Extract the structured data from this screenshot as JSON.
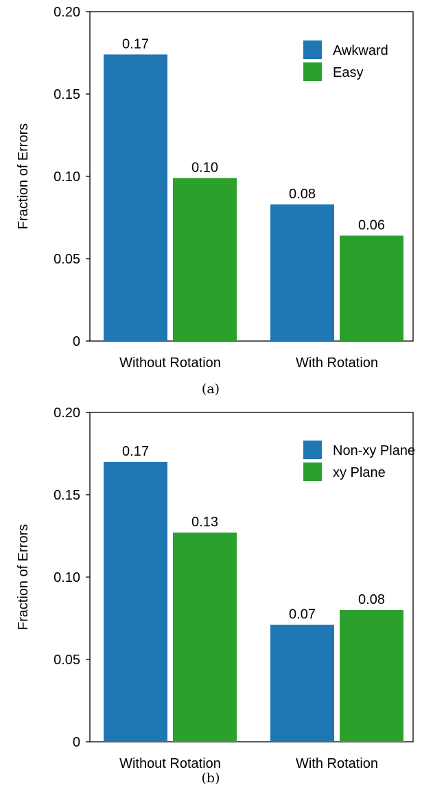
{
  "chart_data": [
    {
      "type": "bar",
      "categories": [
        "Without Rotation",
        "With Rotation"
      ],
      "series": [
        {
          "name": "Awkward",
          "values": [
            0.174,
            0.083
          ],
          "labels": [
            "0.17",
            "0.08"
          ],
          "color": "#1f77b4"
        },
        {
          "name": "Easy",
          "values": [
            0.099,
            0.064
          ],
          "labels": [
            "0.10",
            "0.06"
          ],
          "color": "#2ca02c"
        }
      ],
      "ylabel": "Fraction of Errors",
      "ylim": [
        0,
        0.2
      ],
      "yticks": [
        {
          "value": 0,
          "label": "0"
        },
        {
          "value": 0.05,
          "label": "0.05"
        },
        {
          "value": 0.1,
          "label": "0.10"
        },
        {
          "value": 0.15,
          "label": "0.15"
        },
        {
          "value": 0.2,
          "label": "0.20"
        }
      ],
      "legend_position": "top-right",
      "grid": false,
      "caption": "(a)"
    },
    {
      "type": "bar",
      "categories": [
        "Without Rotation",
        "With Rotation"
      ],
      "series": [
        {
          "name": "Non-xy Plane",
          "values": [
            0.17,
            0.071
          ],
          "labels": [
            "0.17",
            "0.07"
          ],
          "color": "#1f77b4"
        },
        {
          "name": "xy Plane",
          "values": [
            0.127,
            0.08
          ],
          "labels": [
            "0.13",
            "0.08"
          ],
          "color": "#2ca02c"
        }
      ],
      "ylabel": "Fraction of Errors",
      "ylim": [
        0,
        0.2
      ],
      "yticks": [
        {
          "value": 0,
          "label": "0"
        },
        {
          "value": 0.05,
          "label": "0.05"
        },
        {
          "value": 0.1,
          "label": "0.10"
        },
        {
          "value": 0.15,
          "label": "0.15"
        },
        {
          "value": 0.2,
          "label": "0.20"
        }
      ],
      "legend_position": "top-right",
      "grid": false,
      "caption": "(b)"
    }
  ]
}
